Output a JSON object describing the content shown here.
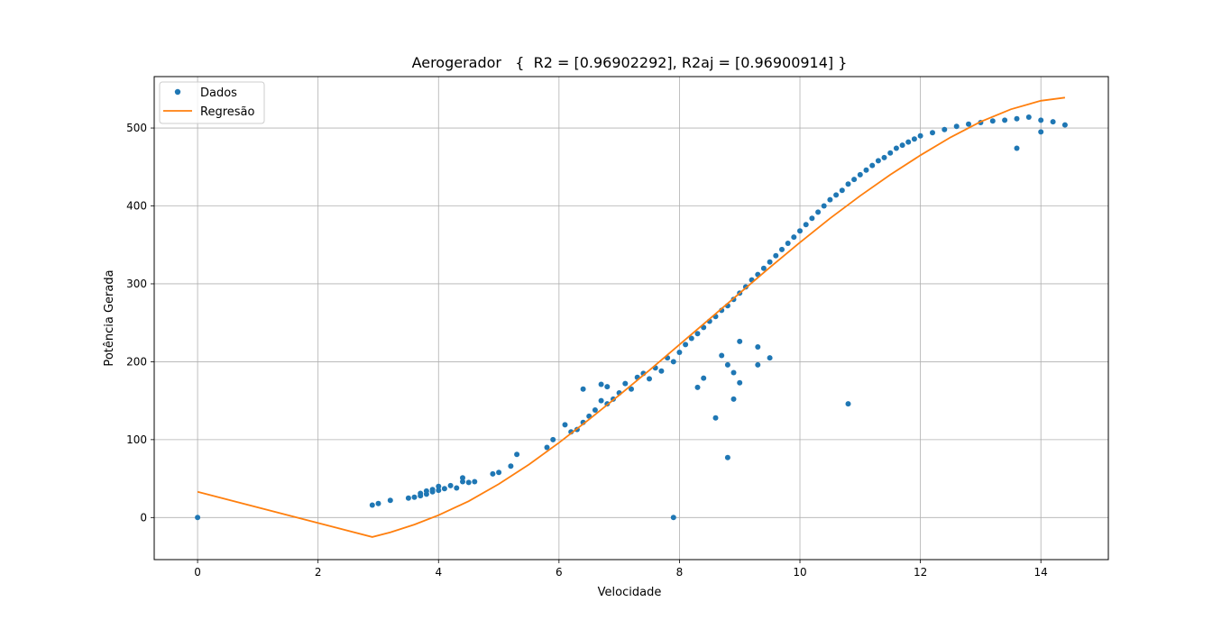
{
  "chart_data": {
    "type": "scatter",
    "title": "Aerogerador   {  R2 = [0.96902292], R2aj = [0.96900914] }",
    "xlabel": "Velocidade",
    "ylabel": "Potência Gerada",
    "xlim": [
      -0.72,
      15.12
    ],
    "ylim": [
      -54,
      566
    ],
    "xticks": [
      0,
      2,
      4,
      6,
      8,
      10,
      12,
      14
    ],
    "yticks": [
      0,
      100,
      200,
      300,
      400,
      500
    ],
    "grid": true,
    "legend": {
      "position": "top-left",
      "entries": [
        "Dados",
        "Regresão"
      ]
    },
    "series": [
      {
        "name": "Dados",
        "kind": "points",
        "color": "#1f77b4",
        "points": [
          [
            0,
            0
          ],
          [
            2.9,
            16
          ],
          [
            3.0,
            18
          ],
          [
            3.2,
            22
          ],
          [
            3.5,
            25
          ],
          [
            3.6,
            26
          ],
          [
            3.7,
            28
          ],
          [
            3.7,
            31
          ],
          [
            3.8,
            30
          ],
          [
            3.8,
            34
          ],
          [
            3.9,
            33
          ],
          [
            3.9,
            36
          ],
          [
            4.0,
            35
          ],
          [
            4.0,
            40
          ],
          [
            4.1,
            37
          ],
          [
            4.2,
            41
          ],
          [
            4.3,
            38
          ],
          [
            4.4,
            46
          ],
          [
            4.4,
            51
          ],
          [
            4.5,
            45
          ],
          [
            4.6,
            46
          ],
          [
            4.9,
            56
          ],
          [
            5.0,
            58
          ],
          [
            5.2,
            66
          ],
          [
            5.3,
            81
          ],
          [
            5.8,
            90
          ],
          [
            5.9,
            100
          ],
          [
            6.1,
            119
          ],
          [
            6.2,
            110
          ],
          [
            6.3,
            113
          ],
          [
            6.4,
            122
          ],
          [
            6.4,
            165
          ],
          [
            6.5,
            130
          ],
          [
            6.6,
            138
          ],
          [
            6.7,
            150
          ],
          [
            6.7,
            171
          ],
          [
            6.8,
            146
          ],
          [
            6.8,
            168
          ],
          [
            6.9,
            152
          ],
          [
            7.0,
            160
          ],
          [
            7.1,
            172
          ],
          [
            7.2,
            165
          ],
          [
            7.3,
            180
          ],
          [
            7.4,
            185
          ],
          [
            7.5,
            178
          ],
          [
            7.6,
            192
          ],
          [
            7.7,
            188
          ],
          [
            7.8,
            205
          ],
          [
            7.9,
            200
          ],
          [
            7.9,
            0
          ],
          [
            8.0,
            212
          ],
          [
            8.1,
            222
          ],
          [
            8.2,
            230
          ],
          [
            8.3,
            236
          ],
          [
            8.4,
            244
          ],
          [
            8.5,
            252
          ],
          [
            8.6,
            258
          ],
          [
            8.7,
            266
          ],
          [
            8.8,
            272
          ],
          [
            8.9,
            280
          ],
          [
            9.0,
            288
          ],
          [
            9.1,
            296
          ],
          [
            9.2,
            305
          ],
          [
            9.3,
            312
          ],
          [
            9.4,
            320
          ],
          [
            9.5,
            328
          ],
          [
            9.6,
            336
          ],
          [
            9.7,
            344
          ],
          [
            9.8,
            352
          ],
          [
            9.9,
            360
          ],
          [
            10.0,
            368
          ],
          [
            10.1,
            376
          ],
          [
            10.2,
            384
          ],
          [
            10.3,
            392
          ],
          [
            10.4,
            400
          ],
          [
            10.5,
            408
          ],
          [
            10.6,
            414
          ],
          [
            10.7,
            420
          ],
          [
            10.8,
            428
          ],
          [
            10.9,
            434
          ],
          [
            11.0,
            440
          ],
          [
            11.1,
            446
          ],
          [
            11.2,
            452
          ],
          [
            11.3,
            458
          ],
          [
            11.4,
            462
          ],
          [
            11.5,
            468
          ],
          [
            11.6,
            474
          ],
          [
            11.7,
            478
          ],
          [
            11.8,
            482
          ],
          [
            11.9,
            486
          ],
          [
            12.0,
            490
          ],
          [
            12.2,
            494
          ],
          [
            12.4,
            498
          ],
          [
            12.6,
            502
          ],
          [
            12.8,
            505
          ],
          [
            13.0,
            507
          ],
          [
            13.2,
            509
          ],
          [
            13.4,
            510
          ],
          [
            13.6,
            512
          ],
          [
            13.8,
            514
          ],
          [
            14.0,
            510
          ],
          [
            14.2,
            508
          ],
          [
            14.4,
            504
          ],
          [
            8.3,
            167
          ],
          [
            8.4,
            179
          ],
          [
            8.6,
            128
          ],
          [
            8.7,
            208
          ],
          [
            8.8,
            77
          ],
          [
            8.8,
            196
          ],
          [
            8.9,
            152
          ],
          [
            8.9,
            186
          ],
          [
            9.0,
            173
          ],
          [
            9.0,
            226
          ],
          [
            9.3,
            196
          ],
          [
            9.3,
            219
          ],
          [
            9.5,
            205
          ],
          [
            10.8,
            146
          ],
          [
            13.6,
            474
          ],
          [
            14.0,
            495
          ]
        ]
      },
      {
        "name": "Regresão",
        "kind": "line",
        "color": "#ff7f0e",
        "x": [
          0,
          2.9,
          3.2,
          3.6,
          4.0,
          4.5,
          5.0,
          5.5,
          6.0,
          6.5,
          7.0,
          7.5,
          8.0,
          8.5,
          9.0,
          9.5,
          10.0,
          10.5,
          11.0,
          11.5,
          12.0,
          12.5,
          13.0,
          13.5,
          14.0,
          14.4
        ],
        "y": [
          33,
          -25,
          -19,
          -9,
          3,
          21,
          43,
          68,
          96,
          126,
          157,
          189,
          222,
          255,
          288,
          321,
          353,
          384,
          413,
          440,
          465,
          488,
          508,
          524,
          535,
          539
        ]
      }
    ]
  }
}
